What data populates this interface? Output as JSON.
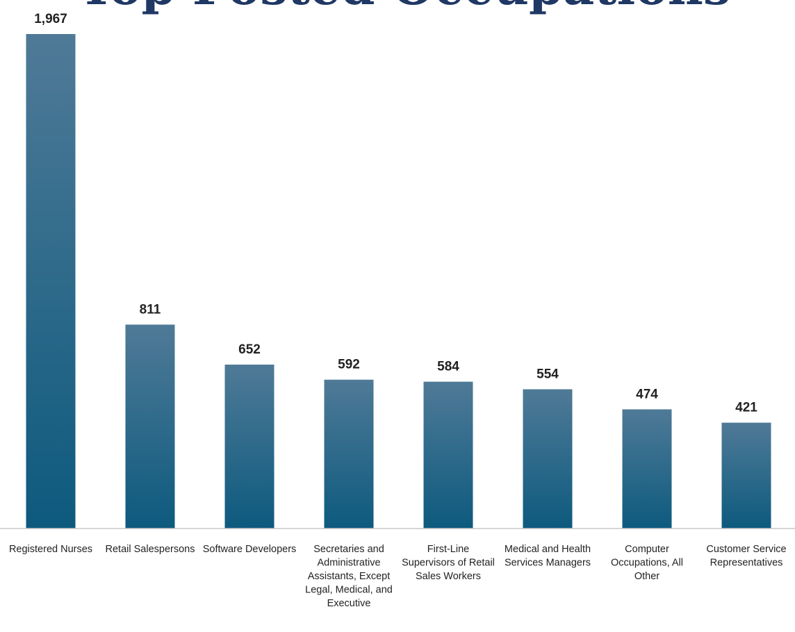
{
  "chart_data": {
    "type": "bar",
    "title": "Top Posted Occupations",
    "xlabel": "",
    "ylabel": "",
    "ylim": [
      0,
      1967
    ],
    "grid": false,
    "legend": "none",
    "categories": [
      "Registered Nurses",
      "Retail Salespersons",
      "Software Developers",
      "Secretaries and Administrative Assistants, Except Legal, Medical, and Executive",
      "First-Line Supervisors of Retail Sales Workers",
      "Medical and Health Services Managers",
      "Computer Occupations, All Other",
      "Customer Service Representatives"
    ],
    "category_label_lines": [
      [
        "Registered Nurses"
      ],
      [
        "Retail Salespersons"
      ],
      [
        "Software Developers"
      ],
      [
        "Secretaries and",
        "Administrative",
        "Assistants, Except",
        "Legal, Medical, and",
        "Executive"
      ],
      [
        "First-Line",
        "Supervisors of Retail",
        "Sales Workers"
      ],
      [
        "Medical and Health",
        "Services Managers"
      ],
      [
        "Computer",
        "Occupations, All",
        "Other"
      ],
      [
        "Customer Service",
        "Representatives"
      ]
    ],
    "values": [
      1967,
      811,
      652,
      592,
      584,
      554,
      474,
      421
    ],
    "value_labels": [
      "1,967",
      "811",
      "652",
      "592",
      "584",
      "554",
      "474",
      "421"
    ],
    "colors": {
      "bar_top": "#4f7a97",
      "bar_bottom": "#0d5a7e",
      "title": "#1f3864",
      "baseline": "#c8c8c8"
    }
  }
}
